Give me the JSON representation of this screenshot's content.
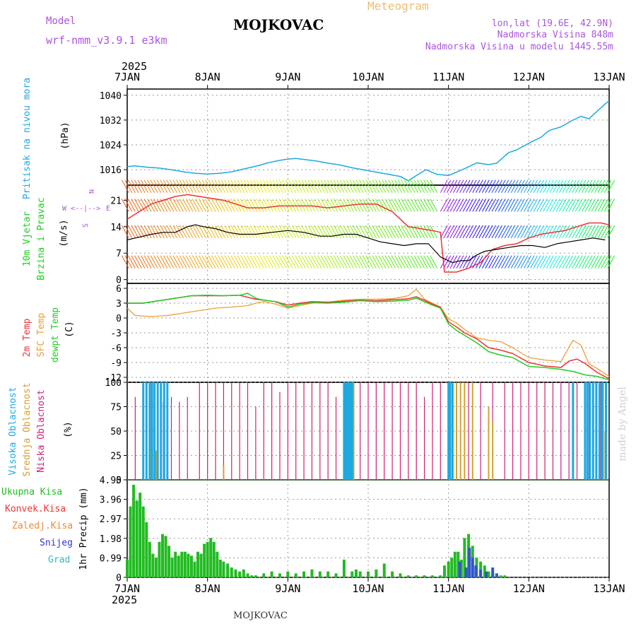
{
  "header": {
    "model_label": "Model",
    "model_name": "wrf-nmm_v3.9.1 e3km",
    "station": "MOJKOVAC",
    "chart_type": "Meteogram",
    "lonlat": "lon,lat (19.6E, 42.9N)",
    "elevation": "Nadmorska Visina 848m",
    "model_elevation": "Nadmorska Visina u modelu 1445.55m"
  },
  "footer": {
    "station": "MOJKOVAC",
    "credit": "made by Angel"
  },
  "colors": {
    "pressure": "#1ea8e0",
    "temp2m": "#ee3333",
    "sfc": "#e8a030",
    "dewpt": "#22cc22",
    "high_cloud": "#1ea8e0",
    "mid_cloud": "#d4a030",
    "low_cloud": "#cc2277",
    "precip_total": "#22bb22",
    "snow": "#3355cc",
    "label_violet": "#aa55dd",
    "grad": "#33bbbb"
  },
  "chart_data": [
    {
      "type": "line",
      "title": "Pritisak na nivou mora",
      "ylabel": "(hPa)",
      "x_unit": "days since 7JAN 2025 00UTC",
      "xlim": [
        0,
        6
      ],
      "ylim": [
        1011,
        1042
      ],
      "yticks": [
        "1016",
        "1024",
        "1032",
        "1040"
      ],
      "x_ticks": [
        "7JAN",
        "8JAN",
        "9JAN",
        "10JAN",
        "11JAN",
        "12JAN",
        "13JAN"
      ],
      "year": "2025",
      "series": [
        {
          "name": "pressure",
          "x": [
            0,
            0.1,
            0.25,
            0.4,
            0.55,
            0.7,
            0.85,
            1.0,
            1.15,
            1.3,
            1.5,
            1.65,
            1.75,
            1.9,
            2.0,
            2.1,
            2.2,
            2.35,
            2.5,
            2.65,
            2.8,
            2.95,
            3.1,
            3.25,
            3.4,
            3.5,
            3.6,
            3.72,
            3.85,
            4.0,
            4.1,
            4.2,
            4.35,
            4.5,
            4.6,
            4.75,
            4.85,
            4.95,
            5.05,
            5.15,
            5.25,
            5.4,
            5.55,
            5.65,
            5.75,
            5.85,
            5.95,
            6.0
          ],
          "y": [
            1017,
            1017.2,
            1016.8,
            1016.5,
            1016,
            1015.3,
            1014.8,
            1014.6,
            1014.8,
            1015.3,
            1016.5,
            1017.4,
            1018.2,
            1019,
            1019.4,
            1019.6,
            1019.3,
            1018.8,
            1018.1,
            1017.5,
            1016.6,
            1015.9,
            1015.2,
            1014.5,
            1013.8,
            1012.4,
            1014.1,
            1016,
            1014.5,
            1014.1,
            1015.2,
            1016.3,
            1018.2,
            1017.6,
            1018.1,
            1021.5,
            1022.4,
            1023.8,
            1025.2,
            1026.4,
            1028.6,
            1029.8,
            1032,
            1033.2,
            1032.4,
            1034.8,
            1037.2,
            1038.2
          ]
        }
      ]
    },
    {
      "type": "line",
      "title": "10m Vjetar",
      "subtitle": "Brzina i Pravac",
      "ylabel": "(m/s)",
      "xlim": [
        0,
        6
      ],
      "ylim": [
        -1,
        25
      ],
      "yticks": [
        "0",
        "7",
        "14",
        "21"
      ],
      "compass": {
        "n": "N",
        "s": "S",
        "w": "W",
        "e": "E",
        "arrows": "<--|-->"
      },
      "series": [
        {
          "name": "wind speed",
          "x": [
            0,
            0.1,
            0.2,
            0.3,
            0.45,
            0.6,
            0.75,
            0.85,
            0.95,
            1.1,
            1.25,
            1.4,
            1.6,
            1.8,
            2.0,
            2.2,
            2.4,
            2.55,
            2.7,
            2.85,
            3.0,
            3.15,
            3.3,
            3.45,
            3.6,
            3.75,
            3.9,
            4.05,
            4.15,
            4.25,
            4.35,
            4.45,
            4.6,
            4.75,
            4.9,
            5.05,
            5.2,
            5.35,
            5.5,
            5.65,
            5.8,
            5.95
          ],
          "y": [
            10.5,
            11,
            11.5,
            12,
            12.5,
            12.5,
            14,
            14.5,
            14,
            13.5,
            12.5,
            12,
            12,
            12.5,
            13,
            12.5,
            11.5,
            11.5,
            12,
            12,
            11,
            10,
            9.5,
            9,
            9.5,
            9.5,
            6,
            4.5,
            5,
            5,
            6.5,
            7.5,
            8,
            8.5,
            9,
            9,
            8.5,
            9.5,
            10,
            10.5,
            11,
            10.5
          ]
        },
        {
          "name": "wind gust",
          "x": [
            0,
            0.15,
            0.3,
            0.45,
            0.6,
            0.75,
            0.9,
            1.05,
            1.2,
            1.35,
            1.5,
            1.7,
            1.9,
            2.1,
            2.3,
            2.5,
            2.7,
            2.9,
            3.1,
            3.3,
            3.5,
            3.65,
            3.8,
            3.9,
            3.95,
            4.1,
            4.25,
            4.4,
            4.55,
            4.7,
            4.85,
            5.0,
            5.15,
            5.3,
            5.45,
            5.6,
            5.75,
            5.9,
            6.0
          ],
          "y": [
            16,
            18,
            20,
            21,
            22,
            22.5,
            22,
            21.5,
            21,
            20,
            19,
            19,
            19.5,
            19.5,
            19.5,
            19,
            19.5,
            20,
            20,
            18,
            14,
            13.5,
            13,
            12.5,
            2,
            2,
            3,
            4.5,
            8,
            9,
            9.5,
            11,
            12,
            12.5,
            13,
            14,
            15,
            15,
            14.5
          ]
        }
      ]
    },
    {
      "type": "line",
      "title": "2m Temp",
      "ylabel": "(C)",
      "series_labels": [
        "2m Temp",
        "SFC Temp",
        "dewpt Temp"
      ],
      "xlim": [
        0,
        6
      ],
      "ylim": [
        -13,
        7
      ],
      "yticks": [
        "6",
        "3",
        "0",
        "-3",
        "-6",
        "-9",
        "-12"
      ],
      "series": [
        {
          "name": "2m Temp",
          "x": [
            0,
            0.2,
            0.4,
            0.6,
            0.8,
            1.0,
            1.2,
            1.4,
            1.5,
            1.6,
            1.7,
            1.85,
            2.0,
            2.15,
            2.3,
            2.5,
            2.7,
            2.9,
            3.1,
            3.3,
            3.5,
            3.6,
            3.7,
            3.8,
            3.9,
            4.0,
            4.1,
            4.2,
            4.35,
            4.5,
            4.65,
            4.8,
            5.0,
            5.2,
            5.4,
            5.5,
            5.6,
            5.7,
            5.85,
            6.0
          ],
          "y": [
            3,
            3,
            3.5,
            4,
            4.5,
            4.5,
            4.5,
            4.6,
            4.2,
            3.8,
            3.6,
            3.3,
            2.6,
            3,
            3.3,
            3.2,
            3.4,
            3.6,
            3.5,
            3.7,
            3.9,
            4.3,
            3.6,
            2.8,
            2.2,
            -0.8,
            -1.8,
            -3,
            -4.2,
            -6,
            -6.5,
            -7.2,
            -9,
            -9.7,
            -10,
            -8.7,
            -8.3,
            -9.2,
            -11,
            -12.3
          ]
        },
        {
          "name": "SFC Temp",
          "x": [
            0,
            0.1,
            0.3,
            0.5,
            0.7,
            0.9,
            1.1,
            1.3,
            1.5,
            1.6,
            1.7,
            1.85,
            2.0,
            2.15,
            2.3,
            2.5,
            2.7,
            2.9,
            3.1,
            3.3,
            3.5,
            3.6,
            3.7,
            3.8,
            3.9,
            4.0,
            4.1,
            4.2,
            4.35,
            4.5,
            4.65,
            4.8,
            5.0,
            5.2,
            5.4,
            5.55,
            5.65,
            5.75,
            5.85,
            6.0
          ],
          "y": [
            2,
            0.5,
            0.3,
            0.5,
            1,
            1.5,
            2,
            2.2,
            2.5,
            3,
            3.3,
            2.8,
            2,
            2.5,
            3,
            3.2,
            3.6,
            3.8,
            3.8,
            3.9,
            4.5,
            5.8,
            3.8,
            3,
            2.2,
            -0.2,
            -1,
            -2.3,
            -4,
            -4.5,
            -4.8,
            -6,
            -8,
            -8.5,
            -8.8,
            -4.5,
            -5.5,
            -9.3,
            -10.2,
            -11.8
          ]
        },
        {
          "name": "dewpt Temp",
          "x": [
            0,
            0.2,
            0.4,
            0.6,
            0.8,
            1.0,
            1.2,
            1.4,
            1.5,
            1.6,
            1.7,
            1.85,
            2.0,
            2.15,
            2.3,
            2.5,
            2.7,
            2.9,
            3.1,
            3.3,
            3.5,
            3.6,
            3.7,
            3.8,
            3.9,
            4.0,
            4.1,
            4.2,
            4.35,
            4.5,
            4.65,
            4.8,
            5.0,
            5.2,
            5.4,
            5.55,
            5.7,
            5.85,
            6.0
          ],
          "y": [
            3,
            3,
            3.5,
            4,
            4.5,
            4.6,
            4.5,
            4.6,
            5,
            4,
            3.6,
            3.3,
            2.2,
            2.8,
            3.1,
            3,
            3.2,
            3.5,
            3.3,
            3.4,
            3.6,
            4,
            3.3,
            2.6,
            2,
            -1.2,
            -2.5,
            -3.5,
            -5,
            -6.8,
            -7.5,
            -8,
            -9.8,
            -10,
            -10.4,
            -10.8,
            -11.5,
            -11.8,
            -12.5
          ]
        }
      ]
    },
    {
      "type": "bar",
      "title": "Oblacnost",
      "ylabel": "(%)",
      "series_labels": [
        "Visoka Oblacnost",
        "Srednja Oblacnost",
        "Niska Oblacnost"
      ],
      "xlim": [
        0,
        6
      ],
      "ylim": [
        0,
        100
      ],
      "yticks": [
        "100",
        "75",
        "50",
        "25",
        "0"
      ],
      "series": [
        {
          "name": "Visoka Oblacnost",
          "x": [
            0.2,
            0.24,
            0.28,
            0.31,
            0.34,
            0.38,
            0.42,
            0.46,
            0.5,
            2.7,
            2.72,
            2.74,
            2.76,
            2.78,
            2.8,
            4.0,
            4.02,
            4.05,
            5.55,
            5.7,
            5.73,
            5.76,
            5.8,
            5.84,
            5.88,
            5.92,
            5.96
          ],
          "values": [
            100,
            100,
            100,
            100,
            100,
            100,
            100,
            100,
            100,
            100,
            100,
            100,
            100,
            100,
            100,
            100,
            100,
            100,
            100,
            100,
            100,
            100,
            100,
            100,
            100,
            100,
            100
          ]
        },
        {
          "name": "Srednja Oblacnost",
          "x": [
            0.3,
            0.36,
            1.2,
            2.7,
            2.72,
            2.74,
            2.78,
            2.82,
            4.1,
            4.15,
            4.2,
            4.3,
            4.5,
            4.55,
            5.95
          ],
          "values": [
            35,
            30,
            15,
            100,
            100,
            85,
            100,
            100,
            100,
            100,
            100,
            100,
            75,
            60,
            50
          ]
        },
        {
          "name": "Niska Oblacnost",
          "x": [
            0.1,
            0.3,
            0.45,
            0.55,
            0.65,
            0.75,
            0.9,
            1.0,
            1.1,
            1.2,
            1.3,
            1.4,
            1.5,
            1.6,
            1.7,
            1.8,
            1.9,
            2.0,
            2.1,
            2.2,
            2.3,
            2.4,
            2.5,
            2.6,
            2.75,
            2.9,
            3.0,
            3.1,
            3.2,
            3.3,
            3.4,
            3.5,
            3.6,
            3.7,
            3.8,
            3.9,
            4.0,
            4.1,
            4.25,
            4.4,
            4.55,
            4.7,
            4.8,
            4.9,
            5.0,
            5.1,
            5.2,
            5.3,
            5.4,
            5.5,
            5.6,
            5.75,
            5.9
          ],
          "values": [
            85,
            100,
            80,
            85,
            80,
            85,
            100,
            100,
            100,
            100,
            100,
            100,
            100,
            75,
            100,
            100,
            90,
            100,
            100,
            100,
            100,
            100,
            100,
            85,
            100,
            100,
            100,
            100,
            100,
            100,
            100,
            100,
            100,
            85,
            100,
            100,
            100,
            100,
            100,
            100,
            100,
            100,
            100,
            100,
            100,
            100,
            100,
            100,
            100,
            100,
            100,
            100,
            100
          ]
        }
      ]
    },
    {
      "type": "bar",
      "ylabel": "1hr Precip (mm)",
      "xlim": [
        0,
        6
      ],
      "ylim": [
        0,
        4.95
      ],
      "yticks": [
        "4.95",
        "3.96",
        "2.97",
        "1.98",
        "0.99",
        "0"
      ],
      "legend": [
        "Ukupna Kisa",
        "Konvek.Kisa",
        "Zaledj.Kisa",
        "Snijeg",
        "Grad"
      ],
      "legend_colors": [
        "#22bb22",
        "#ee3333",
        "#ee8833",
        "#3333cc",
        "#33bbbb"
      ],
      "series": [
        {
          "name": "Ukupna Kisa",
          "x": [
            0.0,
            0.04,
            0.08,
            0.12,
            0.16,
            0.2,
            0.24,
            0.28,
            0.32,
            0.36,
            0.4,
            0.44,
            0.48,
            0.52,
            0.56,
            0.6,
            0.64,
            0.68,
            0.72,
            0.76,
            0.8,
            0.84,
            0.88,
            0.92,
            0.96,
            1.0,
            1.04,
            1.08,
            1.12,
            1.16,
            1.2,
            1.25,
            1.3,
            1.35,
            1.4,
            1.45,
            1.5,
            1.55,
            1.6,
            1.7,
            1.8,
            1.9,
            2.0,
            2.1,
            2.2,
            2.3,
            2.4,
            2.5,
            2.6,
            2.7,
            2.8,
            2.85,
            2.9,
            3.0,
            3.1,
            3.2,
            3.3,
            3.4,
            3.5,
            3.6,
            3.7,
            3.8,
            3.9,
            3.95,
            4.0,
            4.04,
            4.08,
            4.12,
            4.16,
            4.2,
            4.25,
            4.3,
            4.35,
            4.4,
            4.45,
            4.5,
            4.55,
            4.6,
            4.65,
            4.7
          ],
          "values": [
            0.9,
            3.6,
            4.7,
            3.9,
            4.3,
            3.6,
            2.8,
            1.8,
            1.2,
            1.0,
            1.8,
            2.2,
            2.1,
            1.6,
            1.0,
            1.3,
            1.1,
            1.3,
            1.3,
            1.2,
            1.1,
            0.8,
            1.3,
            1.2,
            1.7,
            1.8,
            2.0,
            1.8,
            1.3,
            0.9,
            0.8,
            0.7,
            0.5,
            0.4,
            0.3,
            0.4,
            0.2,
            0.1,
            0.1,
            0.2,
            0.3,
            0.2,
            0.3,
            0.2,
            0.3,
            0.4,
            0.3,
            0.3,
            0.2,
            0.9,
            0.3,
            0.4,
            0.3,
            0.3,
            0.4,
            0.7,
            0.3,
            0.2,
            0.1,
            0.1,
            0.1,
            0.1,
            0.1,
            0.6,
            0.8,
            1.0,
            1.3,
            1.3,
            0.9,
            2.0,
            2.2,
            1.6,
            1.0,
            0.8,
            0.6,
            0.3,
            0.2,
            0.2,
            0.1,
            0.1
          ]
        },
        {
          "name": "Snijeg",
          "x": [
            4.14,
            4.22,
            4.26,
            4.3,
            4.34,
            4.4,
            4.47,
            4.55,
            4.6
          ],
          "values": [
            0.8,
            0.5,
            1.5,
            1.0,
            0.6,
            0.4,
            0.3,
            0.5,
            0.2
          ]
        }
      ]
    }
  ]
}
